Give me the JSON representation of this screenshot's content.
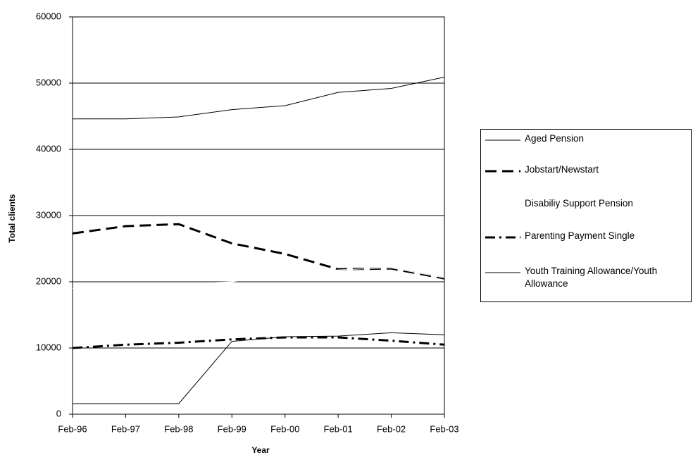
{
  "chart_data": {
    "type": "line",
    "x_label": "Year",
    "y_label": "Total clients",
    "categories": [
      "Feb-96",
      "Feb-97",
      "Feb-98",
      "Feb-99",
      "Feb-00",
      "Feb-01",
      "Feb-02",
      "Feb-03"
    ],
    "ylim": [
      0,
      60000
    ],
    "yticks": [
      0,
      10000,
      20000,
      30000,
      40000,
      50000,
      60000
    ],
    "grid": true,
    "series": [
      {
        "name": "Aged Pension",
        "color": "#000000",
        "style": "solid",
        "width": 1,
        "values": [
          44600,
          44600,
          44900,
          46000,
          46600,
          48600,
          49200,
          50900
        ]
      },
      {
        "name": "Jobstart/Newstart",
        "color": "#000000",
        "style": "dashed",
        "width": 3,
        "values": [
          27300,
          28400,
          28700,
          25800,
          24200,
          21900,
          22000,
          20500
        ]
      },
      {
        "name": "Disabiliy Support Pension",
        "color": "#ffffff",
        "style": "solid",
        "width": 1,
        "values": [
          19000,
          19400,
          19700,
          20000,
          21000,
          21800,
          22100,
          20600
        ]
      },
      {
        "name": "Parenting Payment Single",
        "color": "#000000",
        "style": "dashdot",
        "width": 3,
        "values": [
          10000,
          10500,
          10800,
          11300,
          11600,
          11600,
          11100,
          10500
        ]
      },
      {
        "name": "Youth Training Allowance/Youth Allowance",
        "color": "#000000",
        "style": "solid",
        "width": 1,
        "values": [
          1600,
          1600,
          1600,
          11000,
          11700,
          11800,
          12300,
          12000
        ]
      }
    ]
  }
}
